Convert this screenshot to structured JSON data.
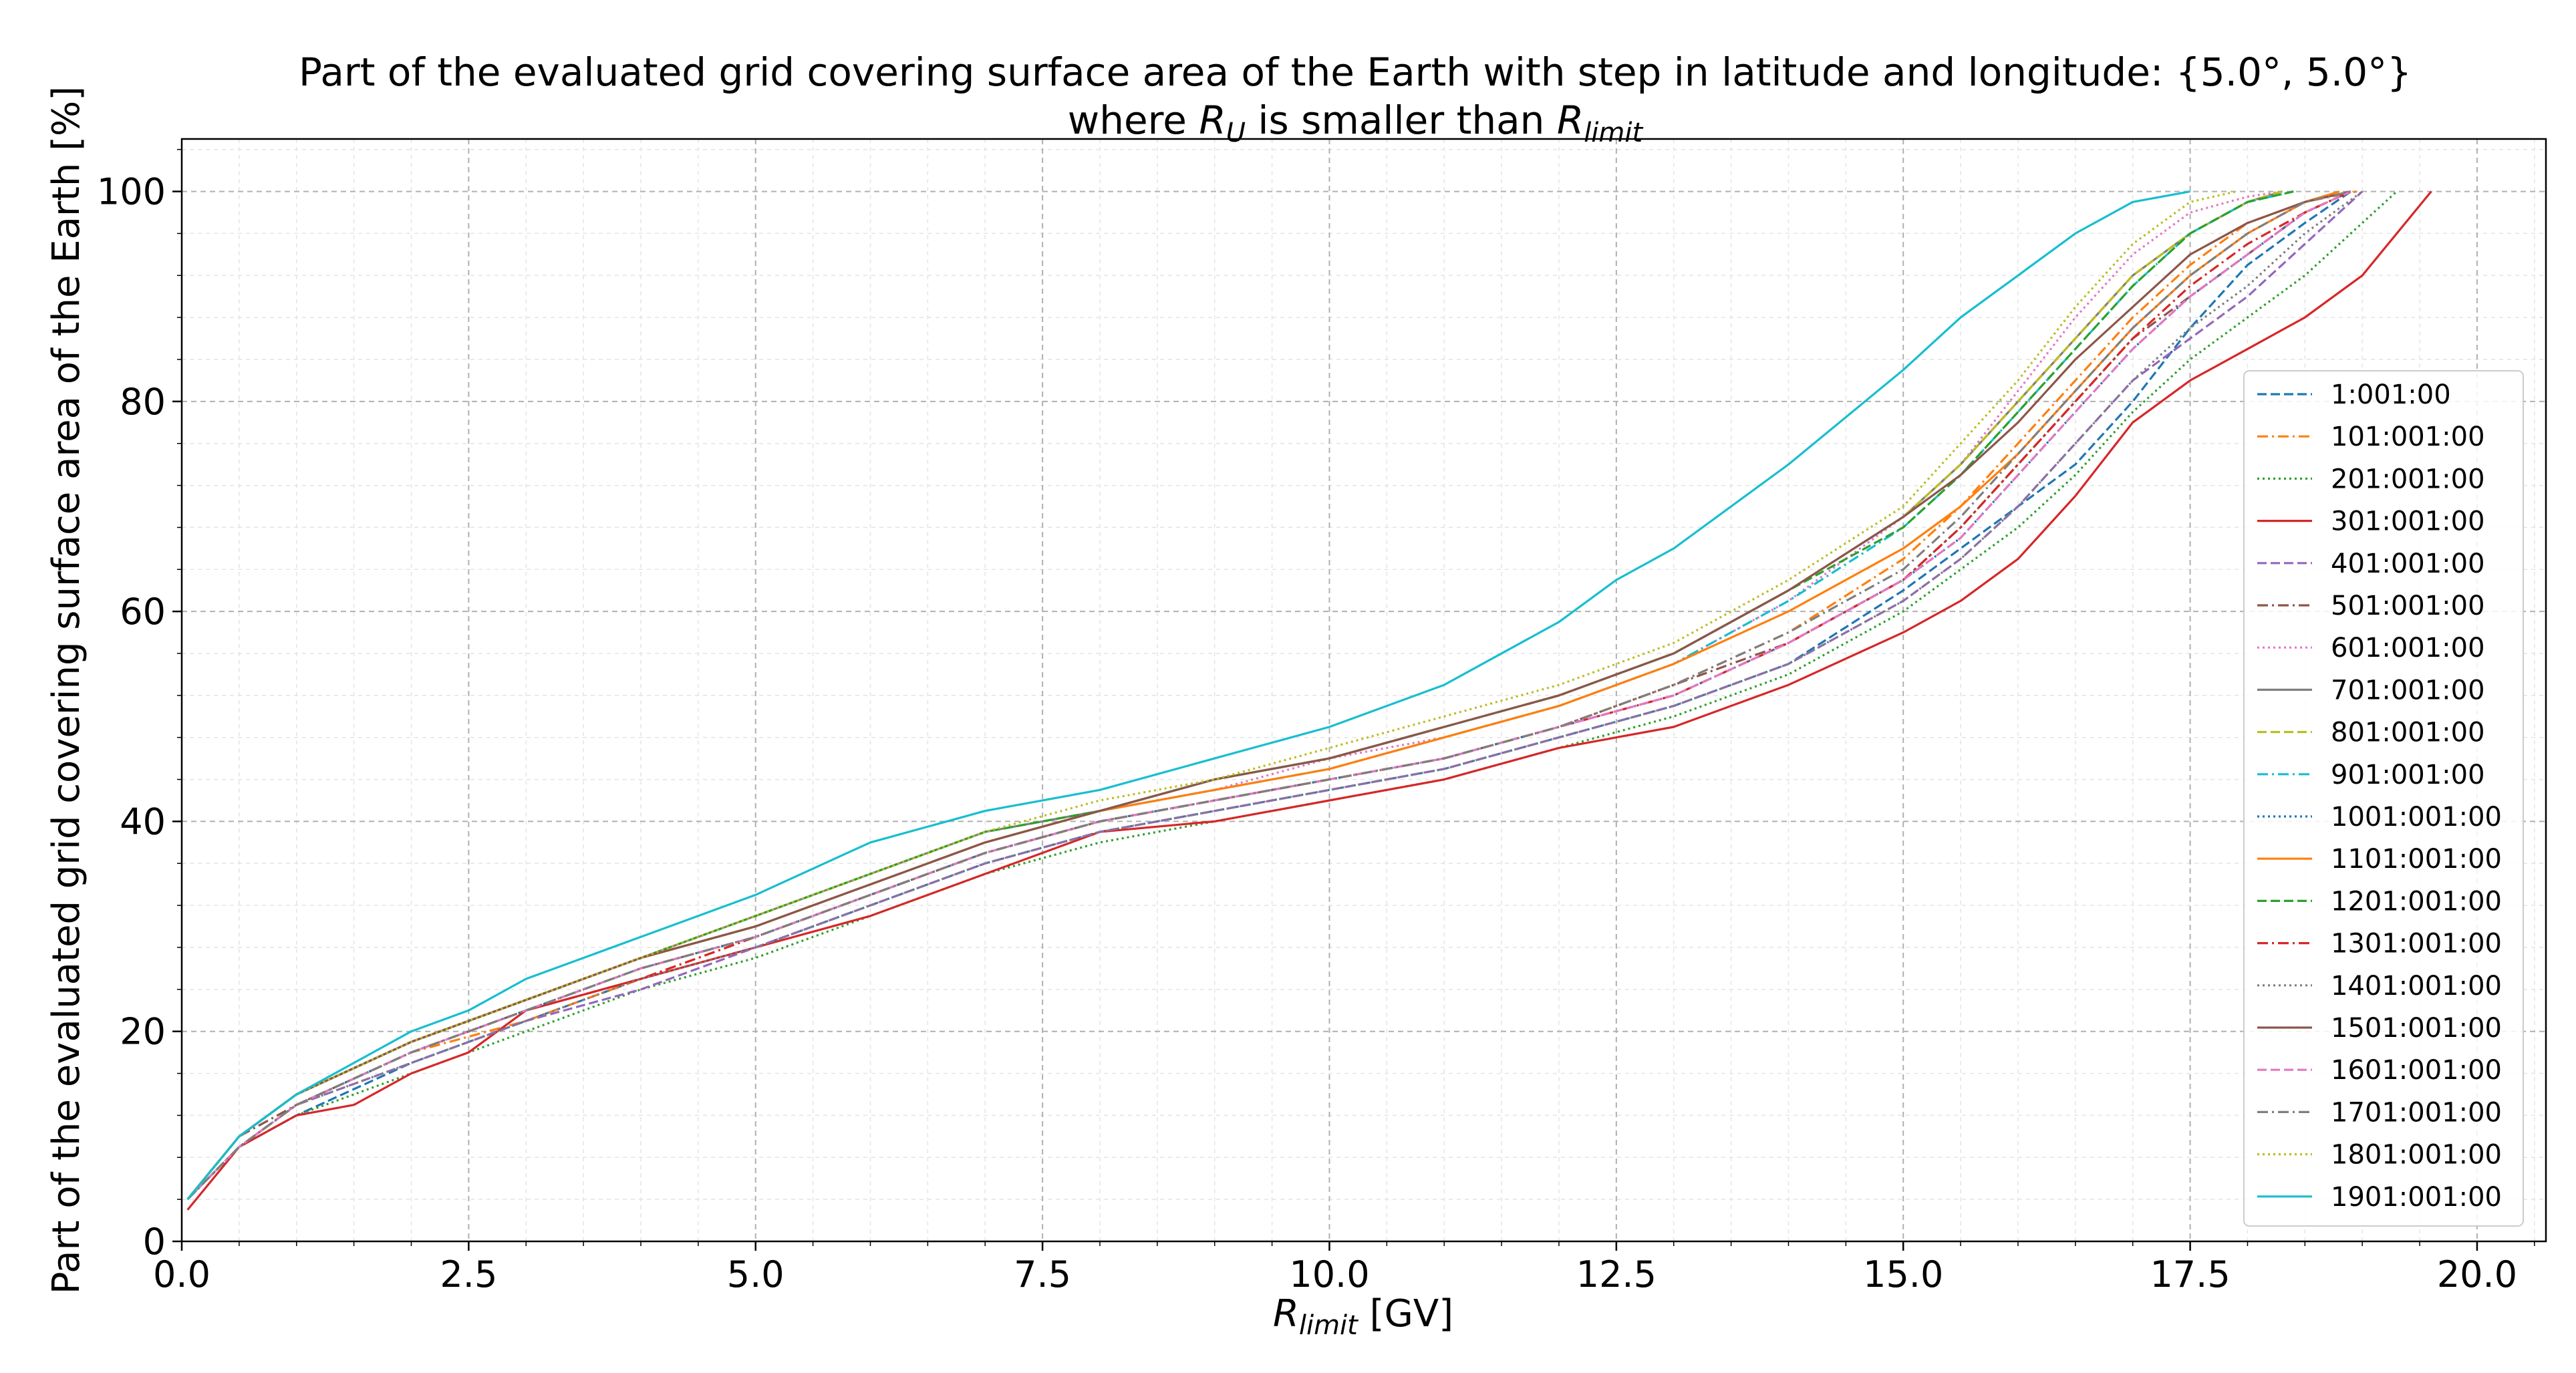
{
  "chart_data": {
    "type": "line",
    "title": "Part of the evaluated grid covering surface area of the Earth with step in latitude and longitude: {5.0°, 5.0°}",
    "subtitle": {
      "prefix": "where ",
      "r_main": "R",
      "r_sub": "U",
      "middle": " is smaller than ",
      "rlimit_main": "R",
      "rlimit_sub": "limit"
    },
    "xlabel": {
      "main": "R",
      "sub": "limit",
      "suffix": " [GV]"
    },
    "ylabel": "Part of the evaluated grid covering surface area of the Earth  [%]",
    "xlim": [
      0,
      20.6
    ],
    "ylim": [
      0,
      105
    ],
    "xticks": [
      0.0,
      2.5,
      5.0,
      7.5,
      10.0,
      12.5,
      15.0,
      17.5,
      20.0
    ],
    "xtick_labels": [
      "0.0",
      "2.5",
      "5.0",
      "7.5",
      "10.0",
      "12.5",
      "15.0",
      "17.5",
      "20.0"
    ],
    "yticks": [
      0,
      20,
      40,
      60,
      80,
      100
    ],
    "ytick_labels": [
      "0",
      "20",
      "40",
      "60",
      "80",
      "100"
    ],
    "grid": true,
    "legend_position": "lower right",
    "series": [
      {
        "name": "1:001:00",
        "color": "#1f77b4",
        "dash": "dashed",
        "x": [
          0.05,
          0.5,
          1,
          2,
          3,
          4,
          5,
          6,
          7,
          8,
          9,
          10,
          11,
          12,
          13,
          14,
          15,
          15.5,
          16,
          16.5,
          17,
          17.5,
          18,
          18.5,
          18.9
        ],
        "y": [
          4,
          9,
          12,
          17,
          21,
          25,
          28,
          32,
          36,
          39,
          41,
          43,
          45,
          48,
          51,
          55,
          62,
          66,
          70,
          74,
          80,
          87,
          93,
          97,
          100
        ]
      },
      {
        "name": "101:001:00",
        "color": "#ff7f0e",
        "dash": "dashdot",
        "x": [
          0.05,
          0.5,
          1,
          2,
          3,
          4,
          5,
          6,
          7,
          8,
          9,
          10,
          11,
          12,
          13,
          14,
          15,
          15.5,
          16,
          16.5,
          17,
          17.5,
          18,
          18.5,
          18.95
        ],
        "y": [
          4,
          9,
          13,
          18,
          21,
          25,
          29,
          33,
          37,
          40,
          42,
          44,
          46,
          49,
          53,
          58,
          65,
          70,
          76,
          82,
          88,
          93,
          97,
          99,
          100
        ]
      },
      {
        "name": "201:001:00",
        "color": "#2ca02c",
        "dash": "dotted",
        "x": [
          0.05,
          0.5,
          1,
          2,
          3,
          4,
          5,
          6,
          7,
          8,
          9,
          10,
          11,
          12,
          13,
          14,
          15,
          15.5,
          16,
          16.5,
          17,
          17.5,
          18,
          18.5,
          19,
          19.3
        ],
        "y": [
          4,
          9,
          12,
          16,
          20,
          24,
          27,
          31,
          35,
          38,
          40,
          42,
          44,
          47,
          50,
          54,
          60,
          64,
          68,
          73,
          79,
          84,
          88,
          92,
          97,
          100
        ]
      },
      {
        "name": "301:001:00",
        "color": "#d62728",
        "dash": "solid",
        "x": [
          0.05,
          0.5,
          1,
          1.5,
          2,
          2.5,
          3,
          4,
          5,
          6,
          7,
          8,
          9,
          10,
          11,
          12,
          13,
          14,
          15,
          15.5,
          16,
          16.5,
          17,
          17.5,
          18,
          18.5,
          19,
          19.6
        ],
        "y": [
          3,
          9,
          12,
          13,
          16,
          18,
          22,
          25,
          28,
          31,
          35,
          39,
          40,
          42,
          44,
          47,
          49,
          53,
          58,
          61,
          65,
          71,
          78,
          82,
          85,
          88,
          92,
          100
        ]
      },
      {
        "name": "401:001:00",
        "color": "#9467bd",
        "dash": "dashed",
        "x": [
          0.05,
          0.5,
          1,
          2,
          3,
          4,
          5,
          6,
          7,
          8,
          9,
          10,
          11,
          12,
          13,
          14,
          15,
          15.5,
          16,
          16.5,
          17,
          17.5,
          18,
          18.5,
          19
        ],
        "y": [
          4,
          9,
          13,
          17,
          21,
          24,
          28,
          32,
          36,
          39,
          41,
          43,
          45,
          48,
          51,
          55,
          61,
          65,
          70,
          76,
          82,
          86,
          90,
          95,
          100
        ]
      },
      {
        "name": "501:001:00",
        "color": "#8c564b",
        "dash": "dashdot",
        "x": [
          0.05,
          0.5,
          1,
          2,
          3,
          4,
          5,
          6,
          7,
          8,
          9,
          10,
          11,
          12,
          13,
          14,
          15,
          15.5,
          16,
          16.5,
          17,
          17.5,
          18,
          18.5,
          18.9
        ],
        "y": [
          4,
          10,
          13,
          18,
          22,
          26,
          29,
          33,
          37,
          40,
          42,
          44,
          46,
          49,
          53,
          57,
          63,
          68,
          74,
          80,
          86,
          90,
          94,
          98,
          100
        ]
      },
      {
        "name": "601:001:00",
        "color": "#e377c2",
        "dash": "dotted",
        "x": [
          0.05,
          0.5,
          1,
          2,
          3,
          4,
          5,
          6,
          7,
          8,
          9,
          10,
          11,
          12,
          13,
          14,
          15,
          15.5,
          16,
          16.5,
          17,
          17.5,
          18,
          18.3
        ],
        "y": [
          4,
          10,
          14,
          19,
          23,
          27,
          30,
          34,
          38,
          41,
          43,
          46,
          48,
          51,
          55,
          61,
          69,
          74,
          81,
          88,
          94,
          98,
          99.5,
          100
        ]
      },
      {
        "name": "701:001:00",
        "color": "#7f7f7f",
        "dash": "solid",
        "x": [
          0.05,
          0.5,
          1,
          2,
          3,
          4,
          5,
          6,
          7,
          8,
          9,
          10,
          11,
          12,
          13,
          14,
          15,
          15.5,
          16,
          16.5,
          17,
          17.5,
          18,
          18.3
        ],
        "y": [
          4,
          10,
          14,
          19,
          23,
          27,
          31,
          35,
          39,
          41,
          44,
          46,
          49,
          52,
          56,
          62,
          69,
          74,
          80,
          86,
          92,
          96,
          99,
          100
        ]
      },
      {
        "name": "801:001:00",
        "color": "#bcbd22",
        "dash": "dashed",
        "x": [
          0.05,
          0.5,
          1,
          2,
          3,
          4,
          5,
          6,
          7,
          8,
          9,
          10,
          11,
          12,
          13,
          14,
          15,
          15.5,
          16,
          16.5,
          17,
          17.5,
          18,
          18.3
        ],
        "y": [
          4,
          10,
          14,
          19,
          23,
          27,
          30,
          34,
          38,
          41,
          44,
          46,
          49,
          52,
          56,
          62,
          69,
          74,
          80,
          86,
          92,
          96,
          99,
          100
        ]
      },
      {
        "name": "901:001:00",
        "color": "#17becf",
        "dash": "dashdot",
        "x": [
          0.05,
          0.5,
          1,
          2,
          3,
          4,
          5,
          6,
          7,
          8,
          9,
          10,
          11,
          12,
          13,
          14,
          15,
          15.5,
          16,
          16.5,
          17,
          17.5,
          18,
          18.4
        ],
        "y": [
          4,
          10,
          14,
          19,
          23,
          27,
          30,
          34,
          38,
          41,
          43,
          45,
          48,
          51,
          55,
          61,
          68,
          73,
          79,
          85,
          91,
          96,
          99,
          100
        ]
      },
      {
        "name": "1001:001:00",
        "color": "#1f77b4",
        "dash": "dotted",
        "x": [
          0.05,
          0.5,
          1,
          2,
          3,
          4,
          5,
          6,
          7,
          8,
          9,
          10,
          11,
          12,
          13,
          14,
          15,
          15.5,
          16,
          16.5,
          17,
          17.5,
          18,
          18.5,
          18.9
        ],
        "y": [
          4,
          9,
          13,
          18,
          22,
          26,
          29,
          33,
          37,
          40,
          42,
          44,
          46,
          49,
          52,
          57,
          63,
          67,
          73,
          79,
          85,
          90,
          94,
          98,
          100
        ]
      },
      {
        "name": "1101:001:00",
        "color": "#ff7f0e",
        "dash": "solid",
        "x": [
          0.05,
          0.5,
          1,
          2,
          3,
          4,
          5,
          6,
          7,
          8,
          9,
          10,
          11,
          12,
          13,
          14,
          15,
          15.5,
          16,
          16.5,
          17,
          17.5,
          18,
          18.5,
          18.8
        ],
        "y": [
          4,
          10,
          14,
          19,
          23,
          27,
          30,
          34,
          38,
          41,
          43,
          45,
          48,
          51,
          55,
          60,
          66,
          70,
          75,
          81,
          87,
          92,
          96,
          99,
          100
        ]
      },
      {
        "name": "1201:001:00",
        "color": "#2ca02c",
        "dash": "dashed",
        "x": [
          0.05,
          0.5,
          1,
          2,
          3,
          4,
          5,
          6,
          7,
          8,
          9,
          10,
          11,
          12,
          13,
          14,
          15,
          15.5,
          16,
          16.5,
          17,
          17.5,
          18,
          18.4
        ],
        "y": [
          4,
          10,
          14,
          19,
          23,
          27,
          31,
          35,
          39,
          41,
          44,
          46,
          49,
          52,
          56,
          62,
          68,
          73,
          79,
          85,
          91,
          96,
          99,
          100
        ]
      },
      {
        "name": "1301:001:00",
        "color": "#d62728",
        "dash": "dashdot",
        "x": [
          0.05,
          0.5,
          1,
          2,
          3,
          4,
          5,
          6,
          7,
          8,
          9,
          10,
          11,
          12,
          13,
          14,
          15,
          15.5,
          16,
          16.5,
          17,
          17.5,
          18,
          18.5,
          18.9
        ],
        "y": [
          4,
          9,
          13,
          18,
          22,
          25,
          29,
          33,
          37,
          40,
          42,
          44,
          46,
          49,
          52,
          57,
          63,
          68,
          74,
          80,
          86,
          91,
          95,
          98,
          100
        ]
      },
      {
        "name": "1401:001:00",
        "color": "#7f7f7f",
        "dash": "dotted",
        "x": [
          0.05,
          0.5,
          1,
          2,
          3,
          4,
          5,
          6,
          7,
          8,
          9,
          10,
          11,
          12,
          13,
          14,
          15,
          15.5,
          16,
          16.5,
          17,
          17.5,
          18,
          18.5,
          19
        ],
        "y": [
          4,
          9,
          13,
          17,
          21,
          25,
          28,
          32,
          36,
          39,
          41,
          43,
          45,
          48,
          51,
          55,
          61,
          65,
          70,
          76,
          82,
          87,
          91,
          96,
          100
        ]
      },
      {
        "name": "1501:001:00",
        "color": "#8c564b",
        "dash": "solid",
        "x": [
          0.05,
          0.5,
          1,
          2,
          3,
          4,
          5,
          6,
          7,
          8,
          9,
          10,
          11,
          12,
          13,
          14,
          15,
          15.5,
          16,
          16.5,
          17,
          17.5,
          18,
          18.5,
          18.9
        ],
        "y": [
          4,
          10,
          14,
          19,
          23,
          27,
          30,
          34,
          38,
          41,
          44,
          46,
          49,
          52,
          56,
          62,
          69,
          73,
          78,
          84,
          89,
          94,
          97,
          99,
          100
        ]
      },
      {
        "name": "1601:001:00",
        "color": "#e377c2",
        "dash": "dashed",
        "x": [
          0.05,
          0.5,
          1,
          2,
          3,
          4,
          5,
          6,
          7,
          8,
          9,
          10,
          11,
          12,
          13,
          14,
          15,
          15.5,
          16,
          16.5,
          17,
          17.5,
          18,
          18.5,
          18.9
        ],
        "y": [
          4,
          9,
          13,
          18,
          22,
          26,
          29,
          33,
          37,
          40,
          42,
          44,
          46,
          49,
          52,
          57,
          63,
          67,
          73,
          79,
          85,
          90,
          94,
          98,
          100
        ]
      },
      {
        "name": "1701:001:00",
        "color": "#7f7f7f",
        "dash": "dashdot",
        "x": [
          0.05,
          0.5,
          1,
          2,
          3,
          4,
          5,
          6,
          7,
          8,
          9,
          10,
          11,
          12,
          13,
          14,
          15,
          15.5,
          16,
          16.5,
          17,
          17.5,
          18,
          18.5,
          18.9
        ],
        "y": [
          4,
          9,
          13,
          18,
          22,
          26,
          29,
          33,
          37,
          40,
          42,
          44,
          46,
          49,
          53,
          58,
          64,
          69,
          75,
          81,
          87,
          92,
          96,
          99,
          100
        ]
      },
      {
        "name": "1801:001:00",
        "color": "#bcbd22",
        "dash": "dotted",
        "x": [
          0.05,
          0.5,
          1,
          2,
          3,
          4,
          5,
          6,
          7,
          8,
          9,
          10,
          11,
          12,
          13,
          14,
          15,
          15.5,
          16,
          16.5,
          17,
          17.5,
          17.9
        ],
        "y": [
          4,
          10,
          14,
          19,
          23,
          27,
          31,
          35,
          39,
          42,
          44,
          47,
          50,
          53,
          57,
          63,
          70,
          76,
          82,
          89,
          95,
          99,
          100
        ]
      },
      {
        "name": "1901:001:00",
        "color": "#17becf",
        "dash": "solid",
        "x": [
          0.05,
          0.5,
          1,
          1.5,
          2,
          2.5,
          3,
          4,
          5,
          6,
          7,
          8,
          9,
          10,
          11,
          12,
          12.5,
          13,
          14,
          15,
          15.5,
          16,
          16.5,
          17,
          17.5
        ],
        "y": [
          4,
          10,
          14,
          17,
          20,
          22,
          25,
          29,
          33,
          38,
          41,
          43,
          46,
          49,
          53,
          59,
          63,
          66,
          74,
          83,
          88,
          92,
          96,
          99,
          100
        ]
      }
    ]
  }
}
